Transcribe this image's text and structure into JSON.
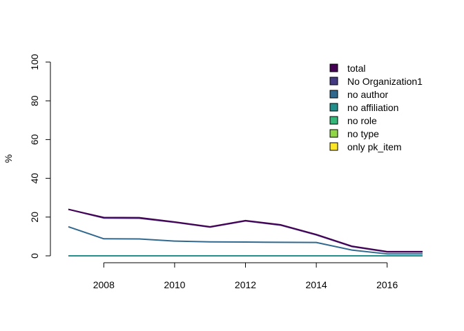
{
  "chart_data": {
    "type": "line",
    "title": "",
    "xlabel": "",
    "ylabel": "%",
    "xlim": [
      2007,
      2017
    ],
    "ylim": [
      0,
      100
    ],
    "x_ticks": [
      2008,
      2010,
      2012,
      2014,
      2016
    ],
    "y_ticks": [
      0,
      20,
      40,
      60,
      80,
      100
    ],
    "x": [
      2007,
      2008,
      2009,
      2010,
      2011,
      2012,
      2013,
      2014,
      2015,
      2016,
      2017
    ],
    "legend_position": "top-right",
    "series": [
      {
        "name": "total",
        "color": "#440154",
        "values": [
          24,
          19.8,
          19.7,
          17.5,
          15,
          18.2,
          16,
          11,
          5,
          2.2,
          2.2
        ]
      },
      {
        "name": "No Organization1",
        "color": "#443A83",
        "values": [
          24,
          19.5,
          19.4,
          17.3,
          14.8,
          18,
          15.8,
          10.8,
          4.8,
          2.0,
          2.0
        ]
      },
      {
        "name": "no author",
        "color": "#31688E",
        "values": [
          15,
          8.8,
          8.7,
          7.6,
          7.2,
          7.1,
          7.0,
          6.9,
          3.0,
          1.0,
          1.0
        ]
      },
      {
        "name": "no affiliation",
        "color": "#21908C",
        "values": [
          0,
          0,
          0,
          0,
          0,
          0,
          0,
          0,
          0,
          0,
          0
        ]
      },
      {
        "name": "no role",
        "color": "#35B779",
        "values": [
          0,
          0,
          0,
          0,
          0,
          0,
          0,
          0,
          0,
          0,
          0
        ]
      },
      {
        "name": "no type",
        "color": "#8FD744",
        "values": [
          0,
          0,
          0,
          0,
          0,
          0,
          0,
          0,
          0,
          0,
          0
        ]
      },
      {
        "name": "only pk_item",
        "color": "#FDE725",
        "values": [
          0,
          0,
          0,
          0,
          0,
          0,
          0,
          0,
          0,
          0,
          0
        ]
      }
    ]
  }
}
